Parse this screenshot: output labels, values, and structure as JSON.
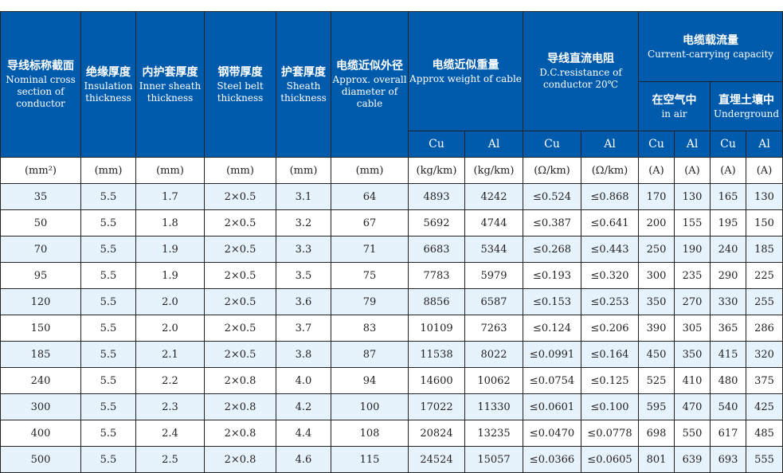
{
  "colors": {
    "header_bg": "#005bac",
    "alt_row_bg": "#e6f3fc"
  },
  "headers": {
    "section": {
      "zh": "导线标称截面",
      "en": "Nominal cross section of conductor"
    },
    "insulation": {
      "zh": "绝缘厚度",
      "en": "Insulation thickness"
    },
    "inner_sheath": {
      "zh": "内护套厚度",
      "en": "Inner sheath thickness"
    },
    "steel_belt": {
      "zh": "钢带厚度",
      "en": "Steel belt thickness"
    },
    "sheath": {
      "zh": "护套厚度",
      "en": "Sheath thickness"
    },
    "diameter": {
      "zh": "电缆近似外径",
      "en": "Approx. overall diameter of cable"
    },
    "weight": {
      "zh": "电缆近似重量",
      "en": "Approx weight of cable"
    },
    "resistance": {
      "zh": "导线直流电阻",
      "en": "D.C.resistance of conductor 20℃"
    },
    "current": {
      "zh": "电缆载流量",
      "en": "Current-carrying capacity"
    },
    "in_air": {
      "zh": "在空气中",
      "en": "in air"
    },
    "underground": {
      "zh": "直埋土壤中",
      "en": "Underground"
    },
    "cu": "Cu",
    "al": "Al"
  },
  "units": [
    "(mm²)",
    "(mm)",
    "(mm)",
    "(mm)",
    "(mm)",
    "(mm)",
    "(kg/km)",
    "(kg/km)",
    "(Ω/km)",
    "(Ω/km)",
    "(A)",
    "(A)",
    "(A)",
    "(A)"
  ],
  "rows": [
    [
      "35",
      "5.5",
      "1.7",
      "2×0.5",
      "3.1",
      "64",
      "4893",
      "4242",
      "≤0.524",
      "≤0.868",
      "170",
      "130",
      "165",
      "130"
    ],
    [
      "50",
      "5.5",
      "1.8",
      "2×0.5",
      "3.2",
      "67",
      "5692",
      "4744",
      "≤0.387",
      "≤0.641",
      "200",
      "155",
      "195",
      "150"
    ],
    [
      "70",
      "5.5",
      "1.9",
      "2×0.5",
      "3.3",
      "71",
      "6683",
      "5344",
      "≤0.268",
      "≤0.443",
      "250",
      "190",
      "240",
      "185"
    ],
    [
      "95",
      "5.5",
      "1.9",
      "2×0.5",
      "3.5",
      "75",
      "7783",
      "5979",
      "≤0.193",
      "≤0.320",
      "300",
      "235",
      "290",
      "225"
    ],
    [
      "120",
      "5.5",
      "2.0",
      "2×0.5",
      "3.6",
      "79",
      "8856",
      "6587",
      "≤0.153",
      "≤0.253",
      "350",
      "270",
      "330",
      "255"
    ],
    [
      "150",
      "5.5",
      "2.0",
      "2×0.5",
      "3.7",
      "83",
      "10109",
      "7263",
      "≤0.124",
      "≤0.206",
      "390",
      "305",
      "365",
      "286"
    ],
    [
      "185",
      "5.5",
      "2.1",
      "2×0.5",
      "3.8",
      "87",
      "11538",
      "8022",
      "≤0.0991",
      "≤0.164",
      "450",
      "350",
      "415",
      "320"
    ],
    [
      "240",
      "5.5",
      "2.2",
      "2×0.8",
      "4.0",
      "94",
      "14600",
      "10062",
      "≤0.0754",
      "≤0.125",
      "525",
      "410",
      "480",
      "375"
    ],
    [
      "300",
      "5.5",
      "2.3",
      "2×0.8",
      "4.2",
      "100",
      "17022",
      "11330",
      "≤0.0601",
      "≤0.100",
      "595",
      "470",
      "540",
      "425"
    ],
    [
      "400",
      "5.5",
      "2.4",
      "2×0.8",
      "4.4",
      "108",
      "20824",
      "13235",
      "≤0.0470",
      "≤0.0778",
      "698",
      "550",
      "617",
      "485"
    ],
    [
      "500",
      "5.5",
      "2.5",
      "2×0.8",
      "4.6",
      "115",
      "24524",
      "15057",
      "≤0.0366",
      "≤0.0605",
      "801",
      "639",
      "693",
      "555"
    ]
  ]
}
